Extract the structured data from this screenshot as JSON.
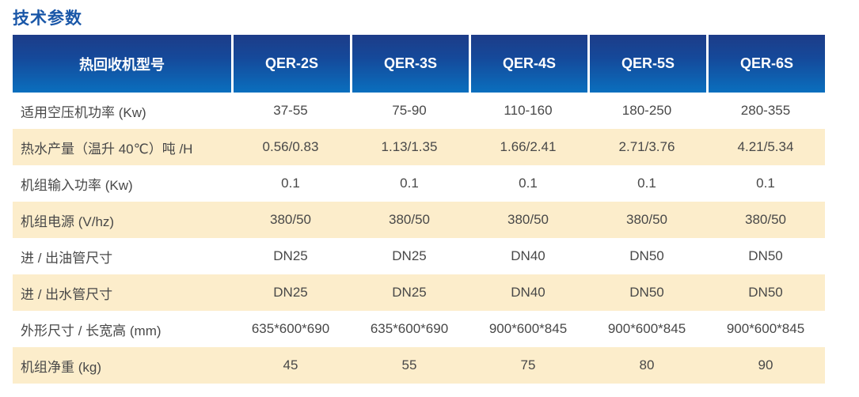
{
  "page_title": "技术参数",
  "colors": {
    "header_gradient_top": "#1d3c88",
    "header_gradient_bottom": "#0a6fbe",
    "header_text": "#ffffff",
    "alt_row_background": "#fcedcb",
    "body_text": "#484848",
    "title_text": "#1a57a8"
  },
  "table": {
    "header": {
      "label_column": "热回收机型号",
      "models": [
        "QER-2S",
        "QER-3S",
        "QER-4S",
        "QER-5S",
        "QER-6S"
      ]
    },
    "rows": [
      {
        "label": "适用空压机功率 (Kw)",
        "values": [
          "37-55",
          "75-90",
          "110-160",
          "180-250",
          "280-355"
        ]
      },
      {
        "label": "热水产量（温升 40℃）吨 /H",
        "values": [
          "0.56/0.83",
          "1.13/1.35",
          "1.66/2.41",
          "2.71/3.76",
          "4.21/5.34"
        ]
      },
      {
        "label": "机组输入功率 (Kw)",
        "values": [
          "0.1",
          "0.1",
          "0.1",
          "0.1",
          "0.1"
        ]
      },
      {
        "label": "机组电源 (V/hz)",
        "values": [
          "380/50",
          "380/50",
          "380/50",
          "380/50",
          "380/50"
        ]
      },
      {
        "label": "进 / 出油管尺寸",
        "values": [
          "DN25",
          "DN25",
          "DN40",
          "DN50",
          "DN50"
        ]
      },
      {
        "label": "进 / 出水管尺寸",
        "values": [
          "DN25",
          "DN25",
          "DN40",
          "DN50",
          "DN50"
        ]
      },
      {
        "label": "外形尺寸 / 长宽高 (mm)",
        "values": [
          "635*600*690",
          "635*600*690",
          "900*600*845",
          "900*600*845",
          "900*600*845"
        ]
      },
      {
        "label": "机组净重 (kg)",
        "values": [
          "45",
          "55",
          "75",
          "80",
          "90"
        ]
      }
    ]
  }
}
